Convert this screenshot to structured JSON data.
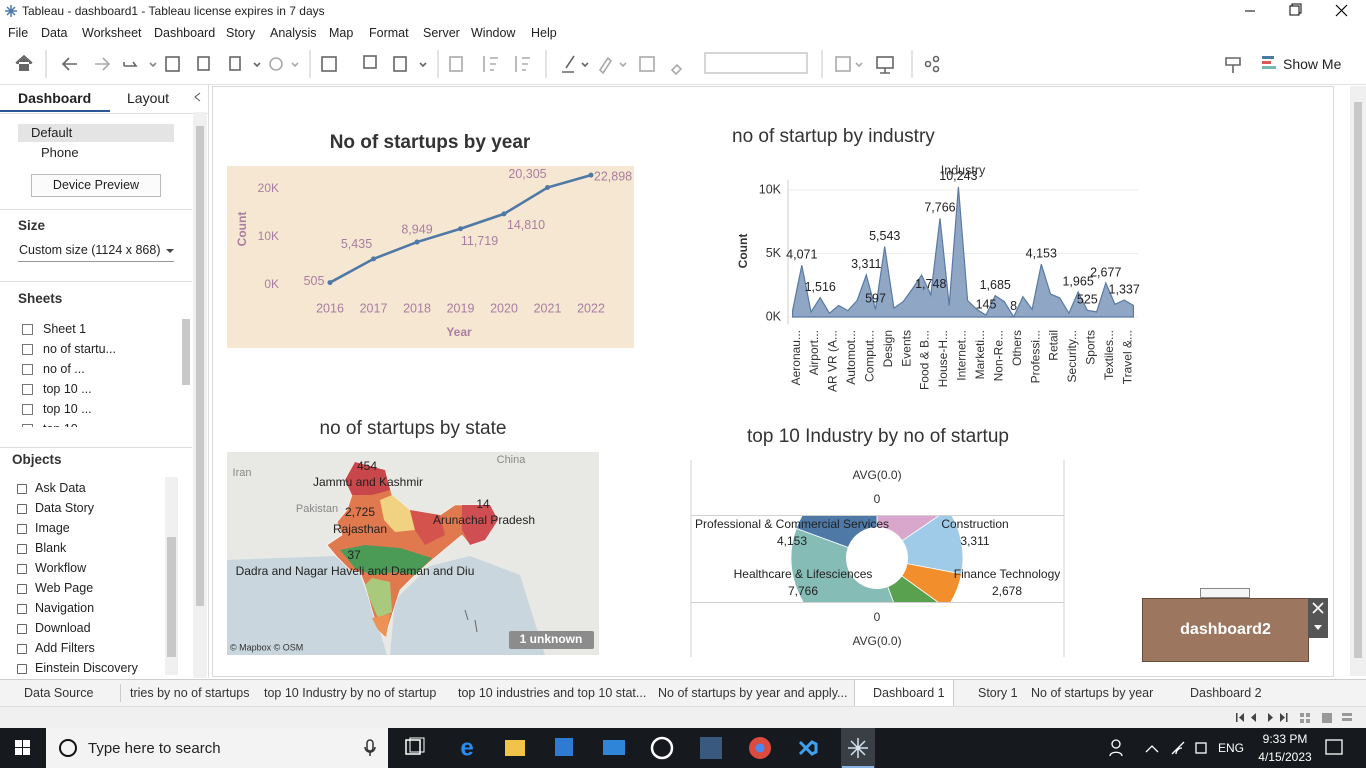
{
  "window": {
    "title": "Tableau - dashboard1 - Tableau license expires in 7 days"
  },
  "menu": [
    "File",
    "Data",
    "Worksheet",
    "Dashboard",
    "Story",
    "Analysis",
    "Map",
    "Format",
    "Server",
    "Window",
    "Help"
  ],
  "toolbar": {
    "show_me": "Show Me"
  },
  "sidebar": {
    "tabs": [
      "Dashboard",
      "Layout"
    ],
    "devices": [
      "Default",
      "Phone"
    ],
    "device_preview": "Device Preview",
    "size": {
      "heading": "Size",
      "value": "Custom size (1124 x 868)"
    },
    "sheets": {
      "heading": "Sheets",
      "items": [
        "Sheet 1",
        "no of startu...",
        "no of ...",
        "top 10 ...",
        "top 10 ...",
        "top 10"
      ]
    },
    "objects": {
      "heading": "Objects",
      "items": [
        "Ask Data",
        "Data Story",
        "Image",
        "Blank",
        "Workflow",
        "Web Page",
        "Navigation",
        "Download",
        "Add Filters",
        "Einstein Discovery"
      ]
    }
  },
  "dashboard": {
    "year_chart": {
      "type": "line",
      "title": "No of startups by year",
      "x": [
        2016,
        2017,
        2018,
        2019,
        2020,
        2021,
        2022
      ],
      "values": [
        505,
        5435,
        8949,
        11719,
        14810,
        20305,
        22898
      ],
      "value_labels": [
        "505",
        "5,435",
        "8,949",
        "11,719",
        "14,810",
        "20,305",
        "22,898"
      ],
      "xlim": [
        2015,
        2023
      ],
      "xticks": [
        2016,
        2017,
        2018,
        2019,
        2020,
        2021,
        2022
      ],
      "ylim": [
        -2000,
        25000
      ],
      "yticks": [
        {
          "value": 0,
          "label": "0K"
        },
        {
          "value": 10000,
          "label": "10K"
        },
        {
          "value": 20000,
          "label": "20K"
        }
      ],
      "xlabel": "Year",
      "ylabel": "Count",
      "color": "#4e79a7",
      "background": "#f6e7d3"
    },
    "industry_chart": {
      "type": "area",
      "title": "no of startup by industry",
      "header": "Industry",
      "categories": [
        "Aeronau...",
        null,
        "Airport...",
        null,
        "AR VR (A...",
        null,
        "Automot...",
        null,
        "Comput...",
        null,
        "Design",
        null,
        "Events",
        null,
        "Food & B...",
        null,
        "House-H...",
        null,
        "Internet...",
        null,
        "Marketi...",
        null,
        "Non-Re...",
        null,
        "Others",
        null,
        "Professi...",
        null,
        "Retail",
        null,
        "Security...",
        null,
        "Sports",
        null,
        "Textiles...",
        null,
        "Travel &...",
        null
      ],
      "values": [
        500,
        4071,
        400,
        1516,
        300,
        900,
        500,
        1300,
        3311,
        597,
        5543,
        700,
        1200,
        2200,
        3300,
        1748,
        7766,
        900,
        10243,
        1300,
        600,
        145,
        1685,
        1200,
        8,
        1600,
        600,
        4153,
        1800,
        1500,
        300,
        1965,
        525,
        400,
        2677,
        1000,
        1337,
        900
      ],
      "value_labels": [
        null,
        "4,071",
        null,
        "1,516",
        null,
        null,
        null,
        null,
        "3,311",
        "597",
        "5,543",
        null,
        null,
        null,
        null,
        "1,748",
        "7,766",
        null,
        "10,243",
        null,
        null,
        "145",
        "1,685",
        null,
        "8",
        null,
        null,
        "4,153",
        null,
        null,
        null,
        "1,965",
        "525",
        null,
        "2,677",
        null,
        "1,337",
        null
      ],
      "ylim": [
        -600,
        10800
      ],
      "yticks": [
        {
          "value": 0,
          "label": "0K"
        },
        {
          "value": 5000,
          "label": "5K"
        },
        {
          "value": 10000,
          "label": "10K"
        }
      ],
      "ylabel": "Count",
      "color": "#8fa6c4",
      "line_color": "#5b7aa3",
      "grid": true
    },
    "state_map": {
      "title": "no of startups by state",
      "states": [
        {
          "count": "454",
          "name": "Jammu and Kashmir"
        },
        {
          "count": "2,725",
          "name": "Rajasthan"
        },
        {
          "count": "14",
          "name": "Arunachal Pradesh"
        },
        {
          "count": "37",
          "name": "Dadra and Nagar Haveli and Daman and Diu"
        }
      ],
      "places": [
        "China",
        "Iran",
        "Pakistan"
      ],
      "unknown": "1 unknown",
      "attribution": "© Mapbox © OSM"
    },
    "industry_pie": {
      "type": "pie",
      "title": "top 10 Industry by no of startup",
      "categories": [
        "Construction",
        "Finance Technology",
        null,
        null,
        "Healthcare & Lifesciences",
        "Professional & Commercial Services"
      ],
      "values": [
        3311,
        2678,
        1500,
        2000,
        7766,
        4153
      ],
      "value_labels": [
        "3,311",
        "2,678",
        null,
        null,
        "7,766",
        "4,153"
      ],
      "colors": [
        "#d9a7cb",
        "#a0cbe8",
        "#f28e2b",
        "#59a14f",
        "#86bcb6",
        "#4e79a7"
      ],
      "header": {
        "top_measure": "AVG(0.0)",
        "top_value": "0",
        "bottom_value": "0",
        "bottom_measure": "AVG(0.0)"
      }
    }
  },
  "floating": {
    "label": "dashboard2"
  },
  "tabs": [
    "Data Source",
    "tries by no of startups",
    "top 10 Industry by no of startup",
    "top 10 industries and top 10 stat...",
    "No of startups by year and apply...",
    "Dashboard 1",
    "Story 1",
    "No of startups by year",
    "Dashboard 2"
  ],
  "taskbar": {
    "search": "Type here to search",
    "language": "ENG",
    "time": "9:33 PM",
    "date": "4/15/2023"
  }
}
